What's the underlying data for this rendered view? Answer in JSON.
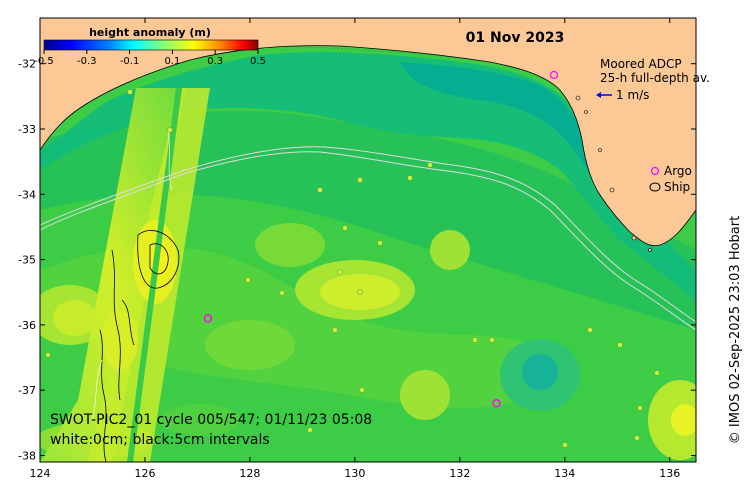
{
  "map": {
    "date": "01 Nov 2023",
    "colorbar": {
      "title": "height anomaly (m)",
      "ticks": [
        "-0.5",
        "-0.3",
        "-0.1",
        "0.1",
        "0.3",
        "0.5"
      ],
      "values": [
        -0.5,
        -0.3,
        -0.1,
        0.1,
        0.3,
        0.5
      ],
      "colormap": [
        "#00008f",
        "#0000ff",
        "#0080ff",
        "#00ffff",
        "#80ff80",
        "#ffff00",
        "#ff8000",
        "#ff0000",
        "#800000"
      ]
    },
    "legend": {
      "adcp_title_1": "Moored ADCP",
      "adcp_title_2": "25-h full-depth av.",
      "adcp_scale": "1 m/s",
      "argo_label": "Argo",
      "ship_label": "Ship"
    },
    "swot": {
      "line1": "SWOT-PIC2_01 cycle 005/547; 01/11/23 05:08",
      "line2": "white:0cm; black:5cm intervals"
    },
    "credit": "© IMOS 02-Sep-2025 23:03 Hobart",
    "x_ticks": [
      "124",
      "126",
      "128",
      "130",
      "132",
      "134",
      "136"
    ],
    "y_ticks": [
      "-32",
      "-33",
      "-34",
      "-35",
      "-36",
      "-37",
      "-38"
    ],
    "xlim": [
      124,
      136.5
    ],
    "ylim": [
      -38.1,
      -31.3
    ],
    "argo_floats": [
      {
        "lon": 127.2,
        "lat": -35.9
      },
      {
        "lon": 132.7,
        "lat": -37.2
      }
    ],
    "colors": {
      "land": "#fcc896",
      "ocean_base": "#3ccc46",
      "argo": "#ff00ff",
      "adcp_arrow": "#0000ff"
    }
  }
}
